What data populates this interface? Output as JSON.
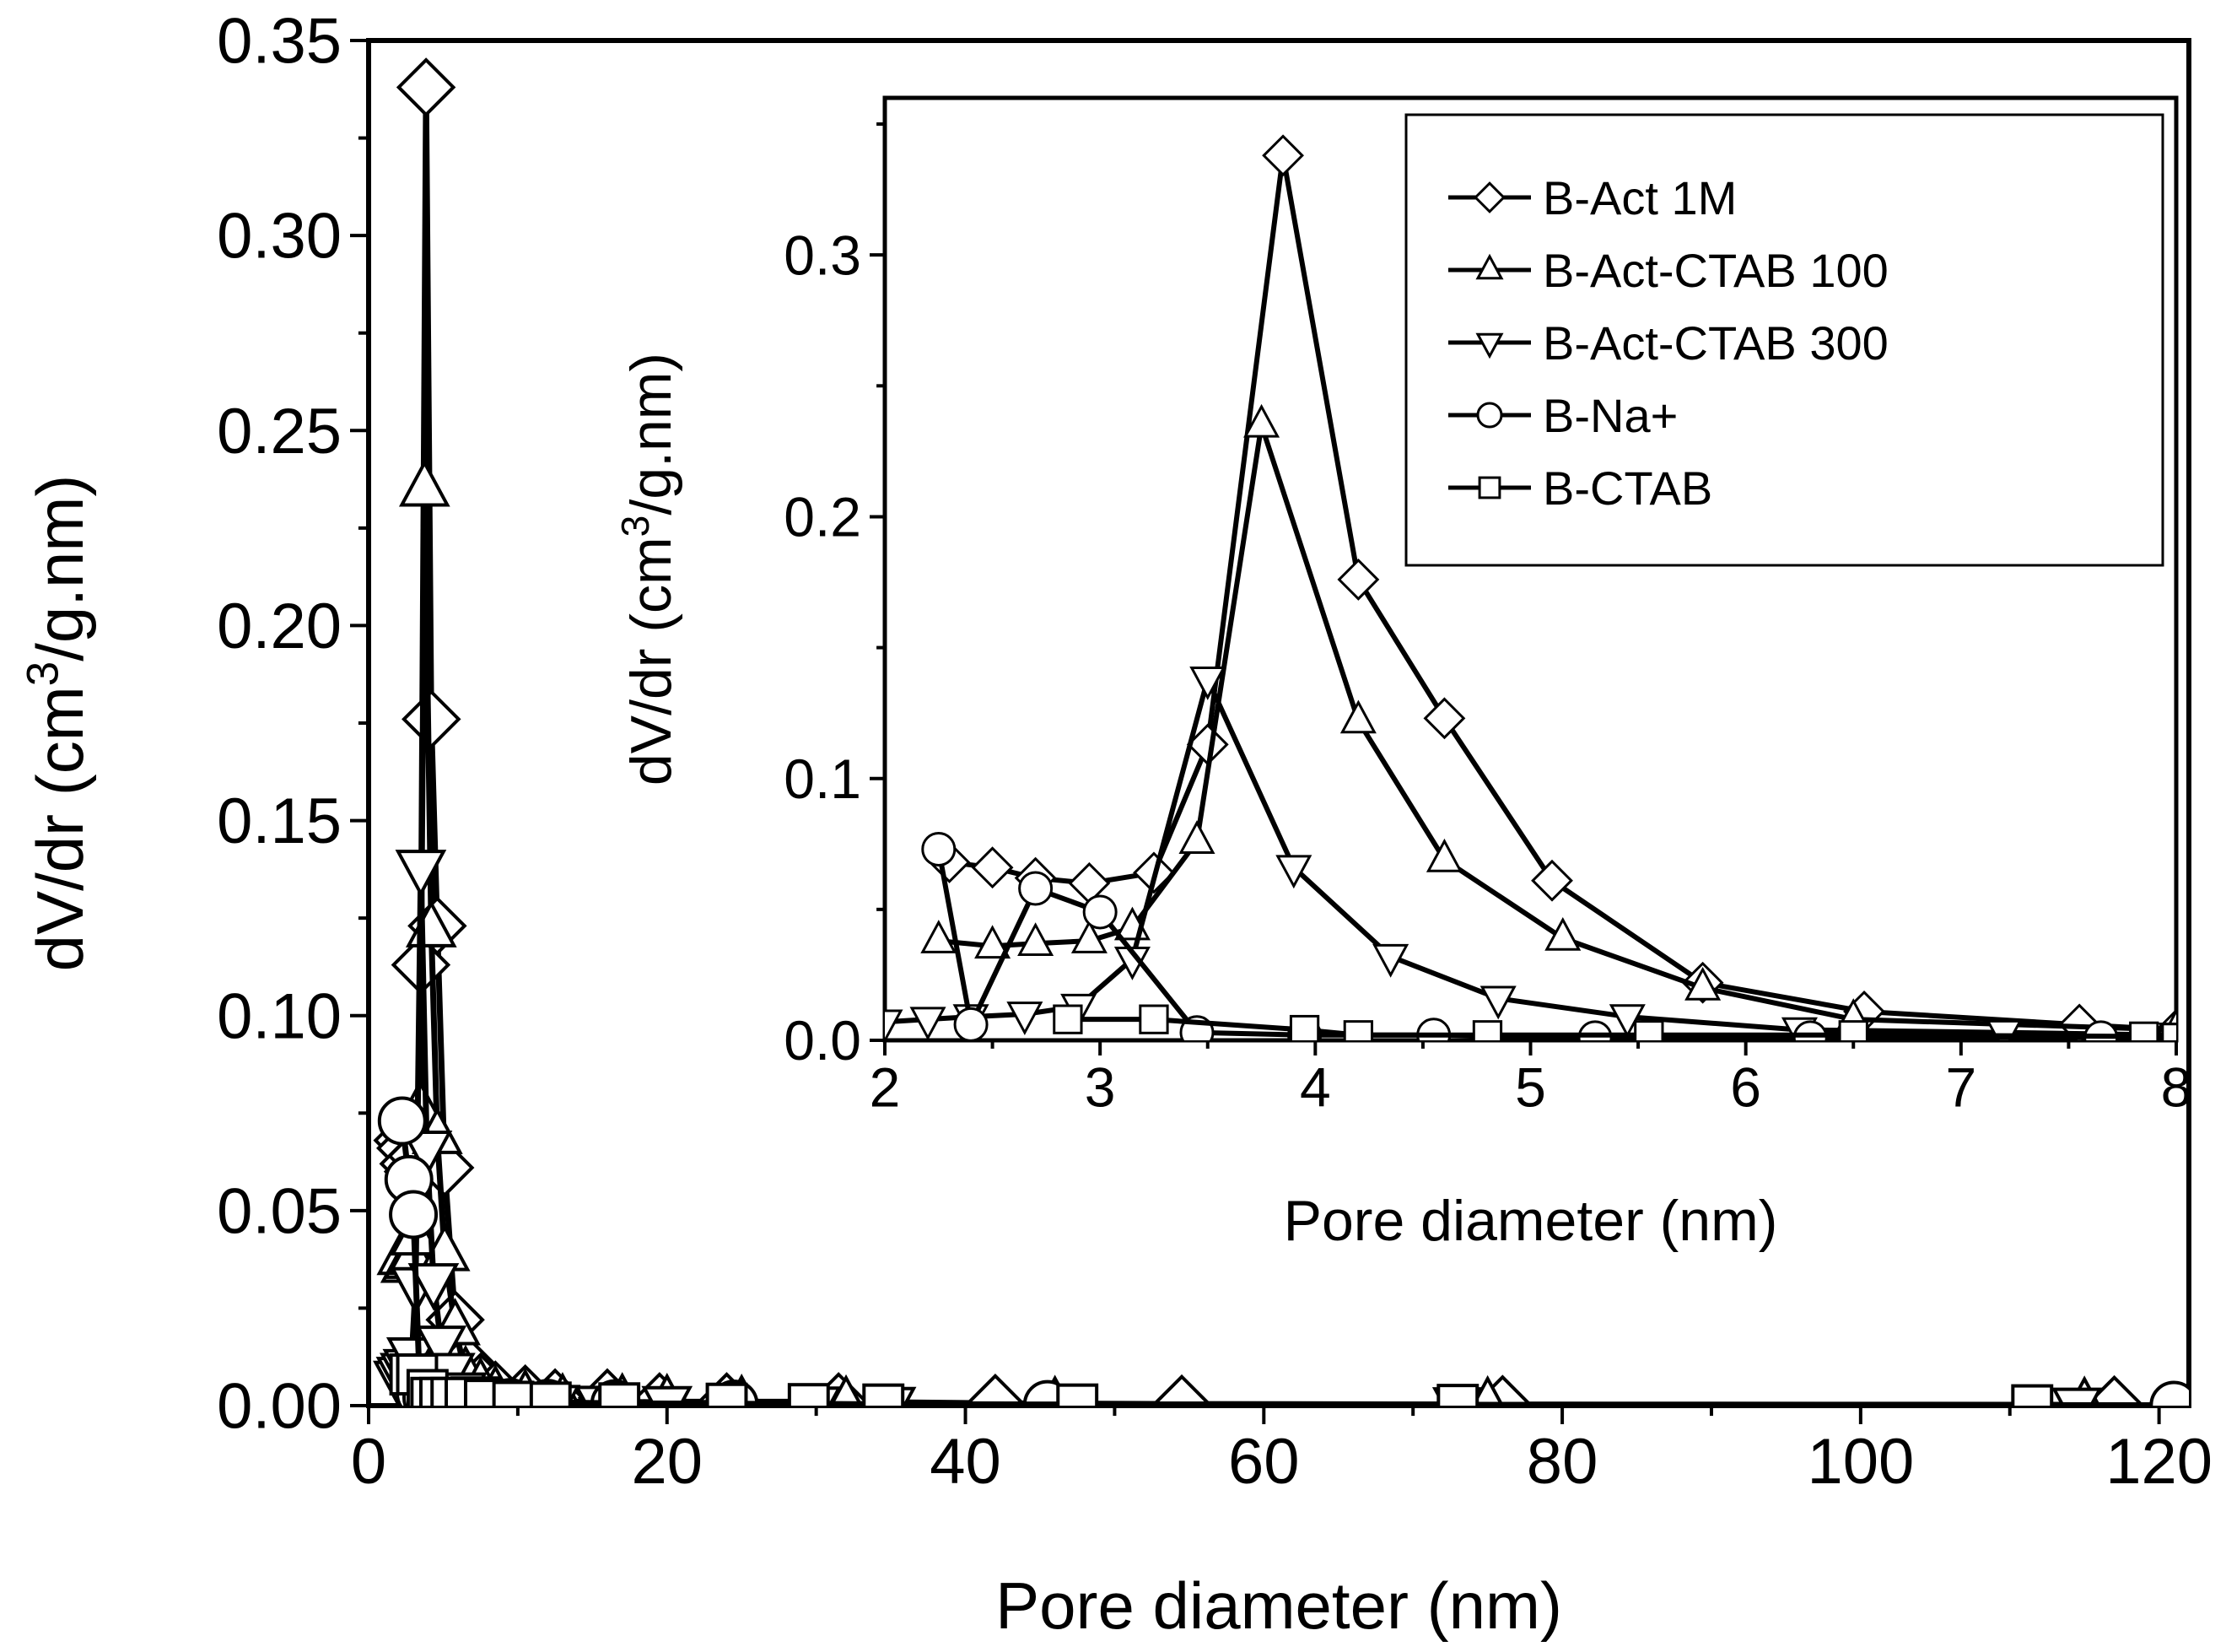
{
  "chart_data": [
    {
      "id": "main",
      "type": "line",
      "title": "",
      "xlabel": "Pore diameter (nm)",
      "ylabel": "dV/dr (cm3/g.nm)",
      "ylabel_parts": {
        "pre": "dV/dr (cm",
        "sup": "3",
        "post": "/g.nm)"
      },
      "xlim": [
        0,
        122
      ],
      "ylim": [
        0,
        0.35
      ],
      "xticks": [
        0,
        20,
        40,
        60,
        80,
        100,
        120
      ],
      "xtick_labels": [
        "0",
        "20",
        "40",
        "60",
        "80",
        "100",
        "120"
      ],
      "yticks": [
        0,
        0.05,
        0.1,
        0.15,
        0.2,
        0.25,
        0.3,
        0.35
      ],
      "ytick_labels": [
        "0.00",
        "0.05",
        "0.10",
        "0.15",
        "0.20",
        "0.25",
        "0.30",
        "0.35"
      ],
      "grid": false,
      "series": [
        {
          "name": "B-Act 1M",
          "marker": "diamond",
          "x": [
            2.3,
            2.5,
            2.7,
            3.0,
            3.25,
            3.5,
            3.85,
            4.2,
            4.6,
            5.1,
            5.8,
            6.5,
            7.5,
            8.5,
            10.5,
            12.5,
            16,
            19.5,
            24,
            31.5,
            42,
            54.5,
            76,
            117
          ],
          "y": [
            0.068,
            0.066,
            0.062,
            0.06,
            0.064,
            0.113,
            0.338,
            0.176,
            0.123,
            0.061,
            0.022,
            0.011,
            0.006,
            0.004,
            0.003,
            0.002,
            0.002,
            0.001,
            0.001,
            0.001,
            0.0006,
            0.0004,
            0.0003,
            0.0002
          ]
        },
        {
          "name": "B-Act-CTAB 100",
          "marker": "triangle-up",
          "x": [
            2.25,
            2.5,
            2.7,
            2.95,
            3.15,
            3.45,
            3.75,
            4.2,
            4.6,
            5.1,
            5.8,
            6.5,
            7.5,
            8.5,
            10.5,
            13,
            17,
            20,
            25,
            32,
            46,
            75,
            115
          ],
          "y": [
            0.038,
            0.036,
            0.037,
            0.038,
            0.043,
            0.076,
            0.235,
            0.122,
            0.069,
            0.039,
            0.02,
            0.008,
            0.005,
            0.003,
            0.002,
            0.001,
            0.001,
            0.0008,
            0.0006,
            0.0004,
            0.0003,
            0.0002,
            0.0001
          ]
        },
        {
          "name": "B-Act-CTAB 300",
          "marker": "triangle-down",
          "x": [
            2.0,
            2.2,
            2.45,
            2.65,
            2.9,
            3.15,
            3.5,
            3.9,
            4.35,
            4.85,
            5.45,
            6.25,
            7.2,
            8.2,
            9.8,
            12.5,
            15.5,
            20,
            30,
            35,
            47,
            73,
            114.5
          ],
          "y": [
            0.007,
            0.008,
            0.009,
            0.01,
            0.013,
            0.031,
            0.138,
            0.066,
            0.032,
            0.016,
            0.009,
            0.004,
            0.003,
            0.002,
            0.001,
            0.0008,
            0.0006,
            0.0005,
            0.0004,
            0.0003,
            0.0003,
            0.0002,
            0.0001
          ]
        },
        {
          "name": "B-Na+",
          "marker": "circle",
          "x": [
            2.25,
            2.7,
            3.0,
            3.45,
            3.9,
            4.55,
            5.3,
            6.3,
            7.6,
            9.5,
            12,
            16.5,
            24.5,
            45.5,
            121
          ],
          "y": [
            0.073,
            0.058,
            0.049,
            0.003,
            0.002,
            0.002,
            0.001,
            0.001,
            0.001,
            0.0008,
            0.0006,
            0.0005,
            0.0004,
            0.0003,
            0.0001
          ]
        },
        {
          "name": "B-CTAB",
          "marker": "square",
          "x": [
            2.8,
            3.25,
            3.95,
            4.2,
            4.8,
            5.55,
            6.5,
            7.8,
            9.7,
            12.2,
            16.8,
            24,
            29.5,
            34.5,
            47.5,
            73,
            111.5
          ],
          "y": [
            0.008,
            0.008,
            0.004,
            0.002,
            0.002,
            0.002,
            0.002,
            0.0015,
            0.001,
            0.0008,
            0.0006,
            0.0005,
            0.0004,
            0.0003,
            0.0003,
            0.0002,
            0.0001
          ]
        }
      ]
    },
    {
      "id": "inset",
      "type": "line",
      "title": "",
      "xlabel": "Pore diameter (nm)",
      "ylabel": "dV/dr (cm3/g.nm)",
      "ylabel_parts": {
        "pre": "dV/dr (cm",
        "sup": "3",
        "post": "/g.nm)"
      },
      "xlim": [
        2,
        8
      ],
      "ylim": [
        0,
        0.36
      ],
      "xticks": [
        2,
        3,
        4,
        5,
        6,
        7,
        8
      ],
      "xtick_labels": [
        "2",
        "3",
        "4",
        "5",
        "6",
        "7",
        "8"
      ],
      "yticks": [
        0,
        0.1,
        0.2,
        0.3
      ],
      "ytick_labels": [
        "0.0",
        "0.1",
        "0.2",
        "0.3"
      ],
      "grid": false,
      "legend_position": "top-right",
      "legend": [
        "B-Act 1M",
        "B-Act-CTAB 100",
        "B-Act-CTAB 300",
        "B-Na+",
        "B-CTAB"
      ],
      "series": [
        {
          "name": "B-Act 1M",
          "marker": "diamond",
          "x": [
            2.3,
            2.5,
            2.7,
            2.95,
            3.25,
            3.5,
            3.85,
            4.2,
            4.6,
            5.1,
            5.8,
            6.55,
            7.55,
            8.0
          ],
          "y": [
            0.068,
            0.066,
            0.062,
            0.06,
            0.064,
            0.113,
            0.338,
            0.176,
            0.123,
            0.061,
            0.022,
            0.011,
            0.006,
            0.004
          ]
        },
        {
          "name": "B-Act-CTAB 100",
          "marker": "triangle-up",
          "x": [
            2.25,
            2.5,
            2.7,
            2.95,
            3.15,
            3.45,
            3.75,
            4.2,
            4.6,
            5.15,
            5.8,
            6.5,
            8.0
          ],
          "y": [
            0.038,
            0.036,
            0.037,
            0.038,
            0.043,
            0.076,
            0.235,
            0.122,
            0.069,
            0.039,
            0.02,
            0.008,
            0.004
          ]
        },
        {
          "name": "B-Act-CTAB 300",
          "marker": "triangle-down",
          "x": [
            2.0,
            2.2,
            2.4,
            2.65,
            2.9,
            3.15,
            3.5,
            3.9,
            4.35,
            4.85,
            5.45,
            6.25,
            7.2,
            8.0
          ],
          "y": [
            0.007,
            0.008,
            0.009,
            0.01,
            0.013,
            0.031,
            0.138,
            0.066,
            0.032,
            0.016,
            0.009,
            0.004,
            0.003,
            0.002
          ]
        },
        {
          "name": "B-Na+",
          "marker": "circle",
          "x": [
            2.25,
            2.4,
            2.7,
            3.0,
            3.45,
            3.95,
            4.55,
            5.3,
            6.3,
            7.65
          ],
          "y": [
            0.073,
            0.006,
            0.058,
            0.049,
            0.003,
            0.002,
            0.002,
            0.001,
            0.001,
            0.001
          ]
        },
        {
          "name": "B-CTAB",
          "marker": "square",
          "x": [
            2.85,
            3.25,
            3.95,
            4.2,
            4.8,
            5.55,
            6.5,
            7.85,
            8.0
          ],
          "y": [
            0.008,
            0.008,
            0.004,
            0.002,
            0.002,
            0.002,
            0.002,
            0.0015,
            0.001
          ]
        }
      ]
    }
  ]
}
